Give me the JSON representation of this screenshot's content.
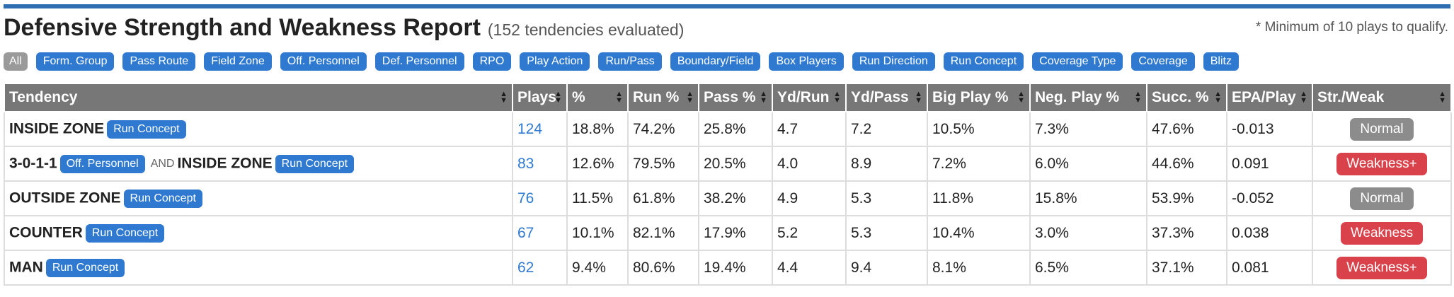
{
  "header": {
    "title": "Defensive Strength and Weakness Report",
    "subtitle": "(152 tendencies evaluated)",
    "note": "* Minimum of 10 plays to qualify."
  },
  "filters": [
    "All",
    "Form. Group",
    "Pass Route",
    "Field Zone",
    "Off. Personnel",
    "Def. Personnel",
    "RPO",
    "Play Action",
    "Run/Pass",
    "Boundary/Field",
    "Box Players",
    "Run Direction",
    "Run Concept",
    "Coverage Type",
    "Coverage",
    "Blitz"
  ],
  "table": {
    "columns": [
      "Tendency",
      "Plays",
      "%",
      "Run %",
      "Pass %",
      "Yd/Run",
      "Yd/Pass",
      "Big Play %",
      "Neg. Play %",
      "Succ. %",
      "EPA/Play",
      "Str./Weak"
    ],
    "rows": [
      {
        "parts": [
          {
            "name": "INSIDE ZONE",
            "tag": "Run Concept"
          }
        ],
        "plays": "124",
        "pct": "18.8%",
        "run": "74.2%",
        "pass": "25.8%",
        "ydrun": "4.7",
        "ydpass": "7.2",
        "big": "10.5%",
        "neg": "7.3%",
        "succ": "47.6%",
        "epa": "-0.013",
        "sw": "Normal"
      },
      {
        "parts": [
          {
            "name": "3-0-1-1",
            "tag": "Off. Personnel"
          },
          {
            "name": "INSIDE ZONE",
            "tag": "Run Concept"
          }
        ],
        "conj": "AND",
        "plays": "83",
        "pct": "12.6%",
        "run": "79.5%",
        "pass": "20.5%",
        "ydrun": "4.0",
        "ydpass": "8.9",
        "big": "7.2%",
        "neg": "6.0%",
        "succ": "44.6%",
        "epa": "0.091",
        "sw": "Weakness+"
      },
      {
        "parts": [
          {
            "name": "OUTSIDE ZONE",
            "tag": "Run Concept"
          }
        ],
        "plays": "76",
        "pct": "11.5%",
        "run": "61.8%",
        "pass": "38.2%",
        "ydrun": "4.9",
        "ydpass": "5.3",
        "big": "11.8%",
        "neg": "15.8%",
        "succ": "53.9%",
        "epa": "-0.052",
        "sw": "Normal"
      },
      {
        "parts": [
          {
            "name": "COUNTER",
            "tag": "Run Concept"
          }
        ],
        "plays": "67",
        "pct": "10.1%",
        "run": "82.1%",
        "pass": "17.9%",
        "ydrun": "5.2",
        "ydpass": "5.3",
        "big": "10.4%",
        "neg": "3.0%",
        "succ": "37.3%",
        "epa": "0.038",
        "sw": "Weakness"
      },
      {
        "parts": [
          {
            "name": "MAN",
            "tag": "Run Concept"
          }
        ],
        "plays": "62",
        "pct": "9.4%",
        "run": "80.6%",
        "pass": "19.4%",
        "ydrun": "4.4",
        "ydpass": "9.4",
        "big": "8.1%",
        "neg": "6.5%",
        "succ": "37.1%",
        "epa": "0.081",
        "sw": "Weakness+"
      }
    ]
  },
  "colors": {
    "accent": "#2f7ad0",
    "header_bg": "#777777",
    "normal_badge": "#8c8c8c",
    "weakness_badge": "#d9424a",
    "top_rule": "#2f6db1"
  },
  "icons": {
    "sort": "sort-arrows-icon"
  }
}
